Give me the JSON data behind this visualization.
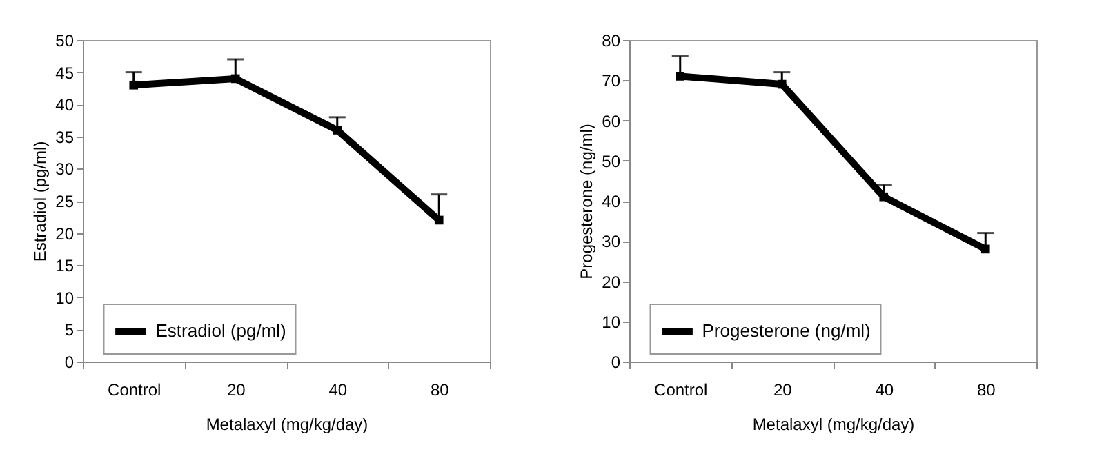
{
  "chart_data": [
    {
      "type": "line",
      "xlabel": "Metalaxyl (mg/kg/day)",
      "ylabel": "Estradiol (pg/ml)",
      "categories": [
        "Control",
        "20",
        "40",
        "80"
      ],
      "series": [
        {
          "name": "Estradiol (pg/ml)",
          "color": "#000000",
          "values": [
            43,
            44,
            36,
            22
          ],
          "errors": [
            [
              43,
              45
            ],
            [
              44,
              47
            ],
            [
              36,
              38
            ],
            [
              22,
              26
            ]
          ]
        }
      ],
      "ylim": [
        0,
        50
      ],
      "yticks": [
        0,
        5,
        10,
        15,
        20,
        25,
        30,
        35,
        40,
        45,
        50
      ],
      "grid": false,
      "legend": "bottom",
      "marker": "square",
      "line_style": "solid"
    },
    {
      "type": "line",
      "xlabel": "Metalaxyl (mg/kg/day)",
      "ylabel": "Progesterone (ng/ml)",
      "categories": [
        "Control",
        "20",
        "40",
        "80"
      ],
      "series": [
        {
          "name": "Progesterone (ng/ml)",
          "color": "#000000",
          "values": [
            71,
            69,
            41,
            28
          ],
          "errors": [
            [
              71,
              76
            ],
            [
              69,
              72
            ],
            [
              41,
              44
            ],
            [
              28,
              32
            ]
          ]
        }
      ],
      "ylim": [
        0,
        80
      ],
      "yticks": [
        0,
        10,
        20,
        30,
        40,
        50,
        60,
        70,
        80
      ],
      "grid": false,
      "legend": "bottom",
      "marker": "square",
      "line_style": "solid"
    }
  ]
}
